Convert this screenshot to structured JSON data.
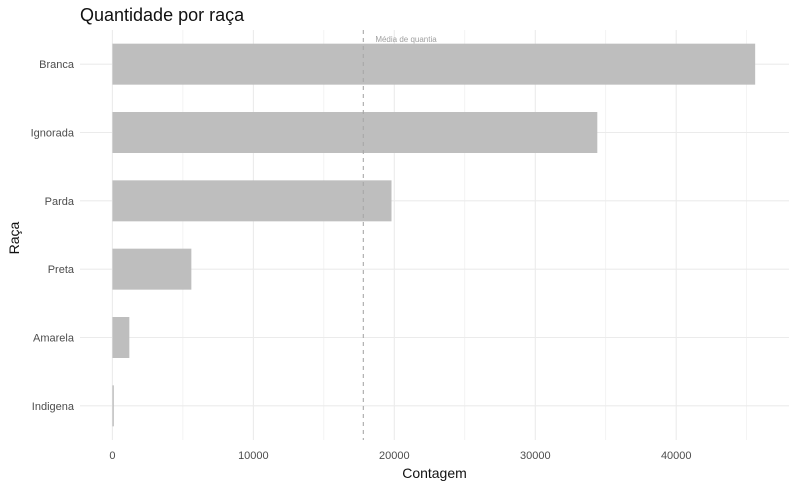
{
  "chart_data": {
    "type": "bar",
    "orientation": "horizontal",
    "title": "Quantidade por raça",
    "xlabel": "Contagem",
    "ylabel": "Raça",
    "categories": [
      "Branca",
      "Ignorada",
      "Parda",
      "Preta",
      "Amarela",
      "Indigena"
    ],
    "values": [
      45600,
      34400,
      19800,
      5600,
      1200,
      100
    ],
    "xlim": [
      -2300,
      48000
    ],
    "xticks": [
      0,
      10000,
      20000,
      30000,
      40000
    ],
    "xtick_labels": [
      "0",
      "10000",
      "20000",
      "30000",
      "40000"
    ],
    "reference_line": {
      "value": 17800,
      "label": "Média de quantia",
      "style": "dashed"
    },
    "grid": true,
    "legend": "none",
    "bar_color": "#bebebe",
    "grid_color": "#ebebeb"
  }
}
